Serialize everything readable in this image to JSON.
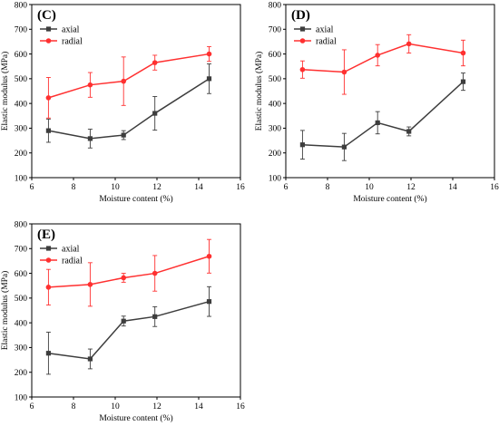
{
  "chart_data": [
    {
      "type": "line",
      "panel_label": "(C)",
      "xlabel": "Moisture content (%)",
      "ylabel": "Elastic modulus (MPa)",
      "xlim": [
        6,
        16
      ],
      "ylim": [
        100,
        800
      ],
      "xticks": [
        "6",
        "8",
        "10",
        "12",
        "14",
        "16"
      ],
      "yticks": [
        "100",
        "200",
        "300",
        "400",
        "500",
        "600",
        "700",
        "800"
      ],
      "legend_position": "top-left",
      "x": [
        6.8,
        8.8,
        10.4,
        11.9,
        14.5
      ],
      "series": [
        {
          "name": "axial",
          "color": "#3d3d3d",
          "marker": "square",
          "values": [
            290,
            258,
            272,
            360,
            500
          ],
          "error": [
            47,
            38,
            18,
            68,
            60
          ]
        },
        {
          "name": "radial",
          "color": "#ff3030",
          "marker": "circle",
          "values": [
            423,
            475,
            490,
            565,
            600
          ],
          "error": [
            82,
            50,
            98,
            30,
            30
          ]
        }
      ]
    },
    {
      "type": "line",
      "panel_label": "(D)",
      "xlabel": "Moisture content (%)",
      "ylabel": "Elastic modulus (MPa)",
      "xlim": [
        6,
        16
      ],
      "ylim": [
        100,
        800
      ],
      "xticks": [
        "6",
        "8",
        "10",
        "12",
        "14",
        "16"
      ],
      "yticks": [
        "100",
        "200",
        "300",
        "400",
        "500",
        "600",
        "700",
        "800"
      ],
      "legend_position": "top-left",
      "x": [
        6.8,
        8.8,
        10.4,
        11.9,
        14.5
      ],
      "series": [
        {
          "name": "axial",
          "color": "#3d3d3d",
          "marker": "square",
          "values": [
            233,
            224,
            322,
            287,
            488
          ],
          "error": [
            58,
            55,
            45,
            18,
            35
          ]
        },
        {
          "name": "radial",
          "color": "#ff3030",
          "marker": "circle",
          "values": [
            537,
            527,
            595,
            641,
            604
          ],
          "error": [
            35,
            90,
            43,
            37,
            52
          ]
        }
      ]
    },
    {
      "type": "line",
      "panel_label": "(E)",
      "xlabel": "Moisture content (%)",
      "ylabel": "Elastic modulus (MPa)",
      "xlim": [
        6,
        16
      ],
      "ylim": [
        100,
        800
      ],
      "xticks": [
        "6",
        "8",
        "10",
        "12",
        "14",
        "16"
      ],
      "yticks": [
        "100",
        "200",
        "300",
        "400",
        "500",
        "600",
        "700",
        "800"
      ],
      "legend_position": "top-left",
      "x": [
        6.8,
        8.8,
        10.4,
        11.9,
        14.5
      ],
      "series": [
        {
          "name": "axial",
          "color": "#3d3d3d",
          "marker": "square",
          "values": [
            277,
            254,
            407,
            425,
            486
          ],
          "error": [
            85,
            40,
            20,
            40,
            60
          ]
        },
        {
          "name": "radial",
          "color": "#ff3030",
          "marker": "circle",
          "values": [
            544,
            555,
            582,
            600,
            669
          ],
          "error": [
            72,
            88,
            18,
            72,
            68
          ]
        }
      ]
    }
  ]
}
